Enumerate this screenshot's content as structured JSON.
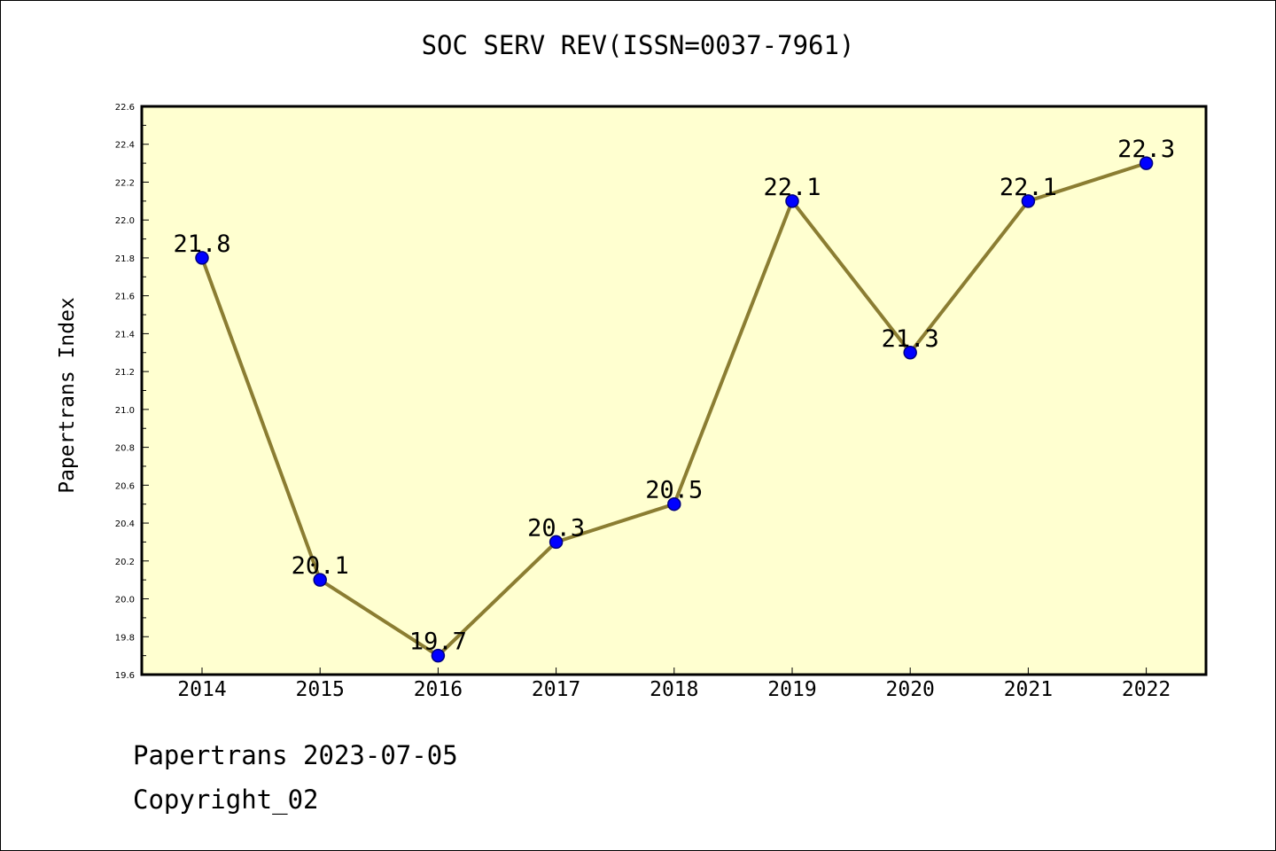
{
  "chart_data": {
    "type": "line",
    "title": "SOC SERV REV(ISSN=0037-7961)",
    "xlabel": "",
    "ylabel": "Papertrans Index",
    "categories": [
      "2014",
      "2015",
      "2016",
      "2017",
      "2018",
      "2019",
      "2020",
      "2021",
      "2022"
    ],
    "series": [
      {
        "values": [
          21.8,
          20.1,
          19.7,
          20.3,
          20.5,
          22.1,
          21.3,
          22.1,
          22.3
        ],
        "data_labels": [
          "21.8",
          "20.1",
          "19.7",
          "20.3",
          "20.5",
          "22.1",
          "21.3",
          "22.1",
          "22.3"
        ]
      }
    ],
    "ylim": [
      19.6,
      22.6
    ],
    "yticks": [
      "19.6",
      "19.8",
      "20.0",
      "20.2",
      "20.4",
      "20.6",
      "20.8",
      "21.0",
      "21.2",
      "21.4",
      "21.6",
      "21.8",
      "22.0",
      "22.2",
      "22.4",
      "22.6"
    ],
    "grid": false,
    "colors": {
      "plot_background": "#FFFFD0",
      "line": "#8B7D32",
      "marker": "#0000FF",
      "marker_edge": "#000080",
      "frame": "#000000"
    }
  },
  "footer": {
    "line1": "Papertrans 2023-07-05",
    "line2": "Copyright_02"
  }
}
